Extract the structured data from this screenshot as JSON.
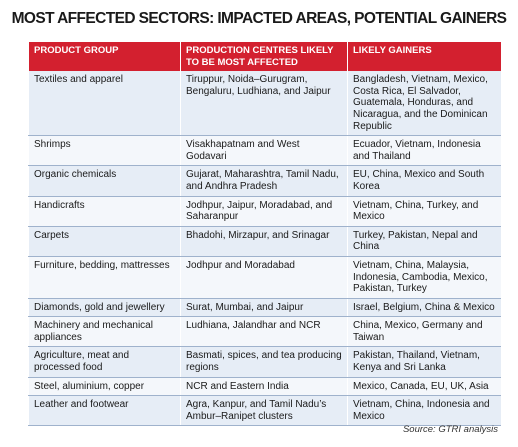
{
  "header": {
    "title": "MOST AFFECTED SECTORS: IMPACTED AREAS, POTENTIAL GAINERS"
  },
  "table": {
    "columns": [
      "PRODUCT GROUP",
      "PRODUCTION CENTRES LIKELY TO BE MOST AFFECTED",
      "LIKELY GAINERS"
    ],
    "rows": [
      [
        "Textiles and apparel",
        "Tiruppur, Noida–Gurugram, Bengaluru, Ludhiana, and Jaipur",
        "Bangladesh, Vietnam, Mexico, Costa Rica, El Salvador, Guatemala, Honduras, and Nicaragua, and the Dominican Republic"
      ],
      [
        "Shrimps",
        "Visakhapatnam and West Godavari",
        "Ecuador, Vietnam, Indonesia and Thailand"
      ],
      [
        "Organic chemicals",
        "Gujarat, Maharashtra, Tamil Nadu, and Andhra Pradesh",
        "EU, China, Mexico and South Korea"
      ],
      [
        "Handicrafts",
        "Jodhpur, Jaipur, Moradabad, and Saharanpur",
        "Vietnam, China, Turkey, and Mexico"
      ],
      [
        "Carpets",
        "Bhadohi, Mirzapur, and Srinagar",
        "Turkey, Pakistan, Nepal and China"
      ],
      [
        "Furniture, bedding, mattresses",
        "Jodhpur and Moradabad",
        "Vietnam, China, Malaysia, Indonesia, Cambodia, Mexico, Pakistan, Turkey"
      ],
      [
        "Diamonds, gold and jewellery",
        "Surat, Mumbai, and Jaipur",
        "Israel, Belgium, China & Mexico"
      ],
      [
        "Machinery and mechanical appliances",
        "Ludhiana, Jalandhar and NCR",
        "China, Mexico, Germany and Taiwan"
      ],
      [
        "Agriculture, meat and processed food",
        "Basmati, spices, and tea producing regions",
        "Pakistan, Thailand, Vietnam, Kenya and Sri Lanka"
      ],
      [
        "Steel, aluminium, copper",
        "NCR and Eastern India",
        "Mexico, Canada, EU, UK, Asia"
      ],
      [
        "Leather and footwear",
        "Agra, Kanpur, and Tamil Nadu’s Ambur–Ranipet clusters",
        "Vietnam, China, Indonesia and Mexico"
      ]
    ]
  },
  "source": "Source: GTRI analysis"
}
